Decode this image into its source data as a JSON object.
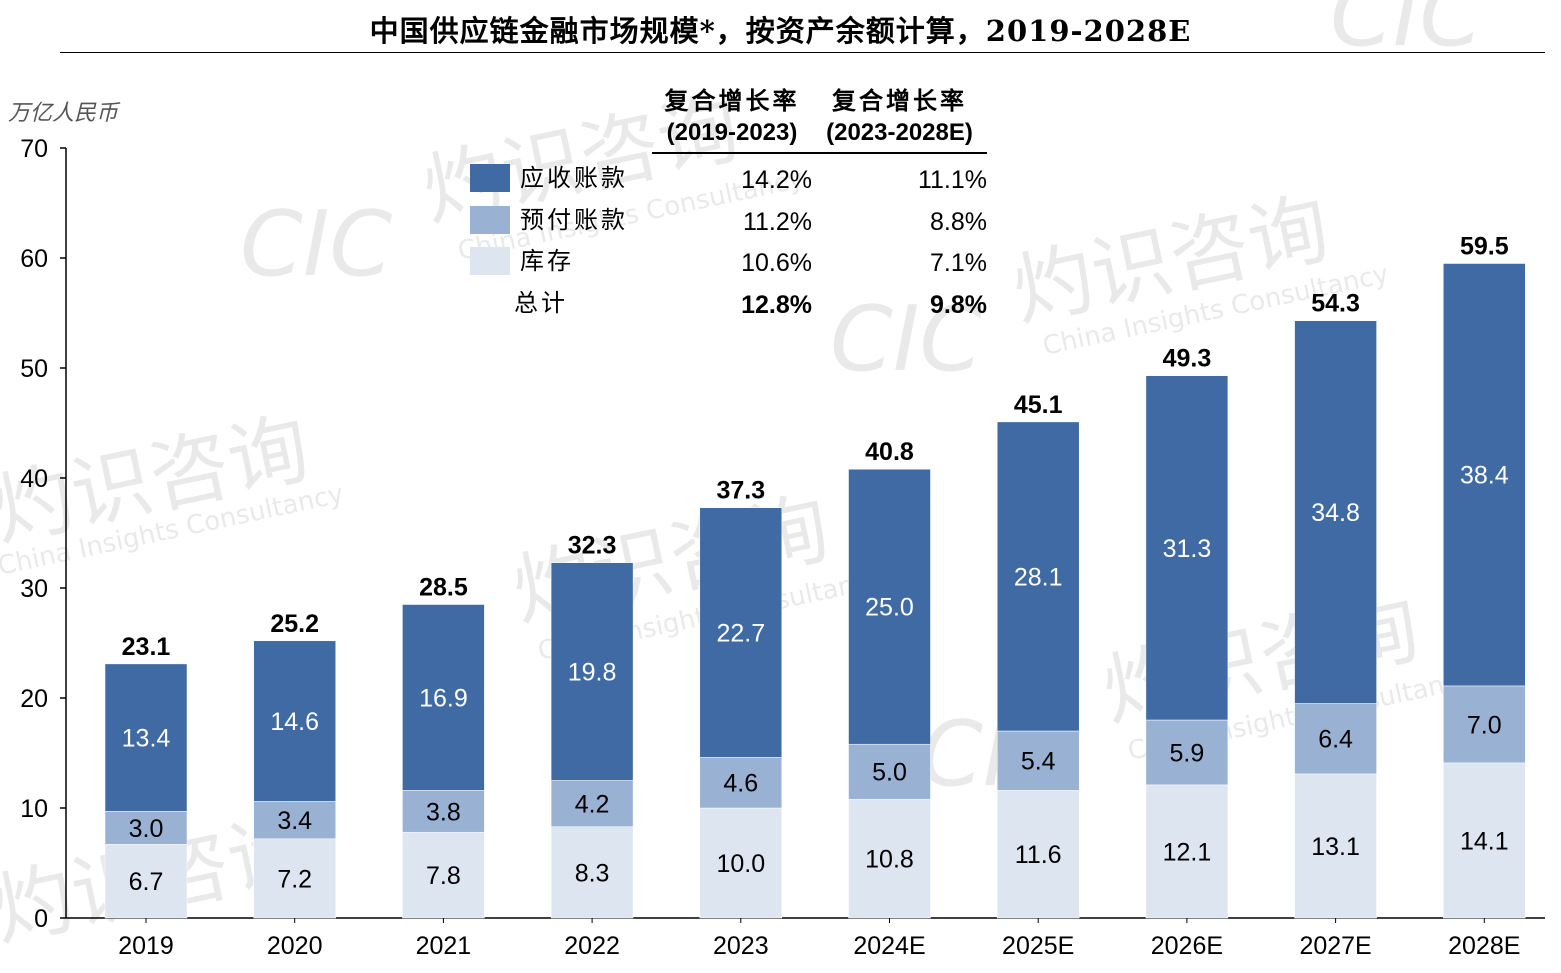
{
  "title": "中国供应链金融市场规模*，按资产余额计算，2019-2028E",
  "watermark": {
    "brand_cn": "灼识咨询",
    "brand_en": "China Insights Consultancy",
    "logo": "CIC"
  },
  "colors": {
    "receivables": "#3f6aa3",
    "prepayments": "#99b2d4",
    "inventory": "#dde5f1",
    "axis": "#000000"
  },
  "cagr_table": {
    "headers": [
      {
        "line1": "复合增长率",
        "line2": "(2019-2023)"
      },
      {
        "line1": "复合增长率",
        "line2": "(2023-2028E)"
      }
    ],
    "rows": [
      {
        "label": "应收账款",
        "swatch": "receivables",
        "cagr_2019_2023": "14.2%",
        "cagr_2023_2028": "11.1%",
        "bold": false
      },
      {
        "label": "预付账款",
        "swatch": "prepayments",
        "cagr_2019_2023": "11.2%",
        "cagr_2023_2028": "8.8%",
        "bold": false
      },
      {
        "label": "库存",
        "swatch": "inventory",
        "cagr_2019_2023": "10.6%",
        "cagr_2023_2028": "7.1%",
        "bold": false
      },
      {
        "label": "总计",
        "swatch": null,
        "cagr_2019_2023": "12.8%",
        "cagr_2023_2028": "9.8%",
        "bold": true
      }
    ]
  },
  "chart_data": {
    "type": "bar",
    "stacked": true,
    "title": "中国供应链金融市场规模*，按资产余额计算，2019-2028E",
    "ylabel": "万亿人民币",
    "xlabel": "",
    "ylim": [
      0,
      70
    ],
    "yticks": [
      0,
      10,
      20,
      30,
      40,
      50,
      60,
      70
    ],
    "categories": [
      "2019",
      "2020",
      "2021",
      "2022",
      "2023",
      "2024E",
      "2025E",
      "2026E",
      "2027E",
      "2028E"
    ],
    "series": [
      {
        "name": "库存",
        "color_key": "inventory",
        "values": [
          6.7,
          7.2,
          7.8,
          8.3,
          10.0,
          10.8,
          11.6,
          12.1,
          13.1,
          14.1
        ],
        "labels": [
          "6.7",
          "7.2",
          "7.8",
          "8.3",
          "10.0",
          "10.8",
          "11.6",
          "12.1",
          "13.1",
          "14.1"
        ],
        "label_color": "#000000"
      },
      {
        "name": "预付账款",
        "color_key": "prepayments",
        "values": [
          3.0,
          3.4,
          3.8,
          4.2,
          4.6,
          5.0,
          5.4,
          5.9,
          6.4,
          7.0
        ],
        "labels": [
          "3.0",
          "3.4",
          "3.8",
          "4.2",
          "4.6",
          "5.0",
          "5.4",
          "5.9",
          "6.4",
          "7.0"
        ],
        "label_color": "#000000"
      },
      {
        "name": "应收账款",
        "color_key": "receivables",
        "values": [
          13.4,
          14.6,
          16.9,
          19.8,
          22.7,
          25.0,
          28.1,
          31.3,
          34.8,
          38.4
        ],
        "labels": [
          "13.4",
          "14.6",
          "16.9",
          "19.8",
          "22.7",
          "25.0",
          "28.1",
          "31.3",
          "34.8",
          "38.4"
        ],
        "label_color": "#ffffff"
      }
    ],
    "totals": [
      23.1,
      25.2,
      28.5,
      32.3,
      37.3,
      40.8,
      45.1,
      49.3,
      54.3,
      59.5
    ],
    "total_labels": [
      "23.1",
      "25.2",
      "28.5",
      "32.3",
      "37.3",
      "40.8",
      "45.1",
      "49.3",
      "54.3",
      "59.5"
    ],
    "grid": false,
    "legend_placement": "top-center"
  }
}
